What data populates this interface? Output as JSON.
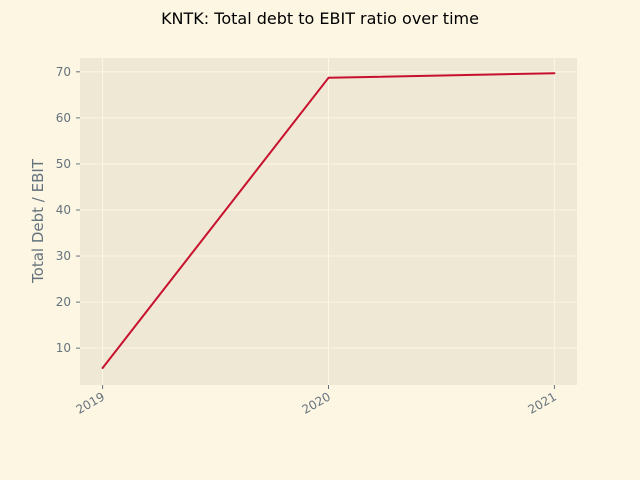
{
  "colors": {
    "figure_background": "#fdf6e3",
    "plot_background": "#eee8d5",
    "grid": "#fdf6e3",
    "line": "#c8102e",
    "tick_text": "#65737e",
    "title_text": "#000000"
  },
  "chart_data": {
    "type": "line",
    "title": "KNTK: Total debt to EBIT ratio over time",
    "xlabel": "",
    "ylabel": "Total Debt / EBIT",
    "categories": [
      "2019",
      "2020",
      "2021"
    ],
    "series": [
      {
        "values": [
          5.7,
          68.7,
          69.7
        ]
      }
    ],
    "xlim": [
      2018.9,
      2021.1
    ],
    "ylim": [
      2.0,
      73.0
    ],
    "yticks": [
      10,
      20,
      30,
      40,
      50,
      60,
      70
    ],
    "grid": true,
    "legend": "none"
  }
}
